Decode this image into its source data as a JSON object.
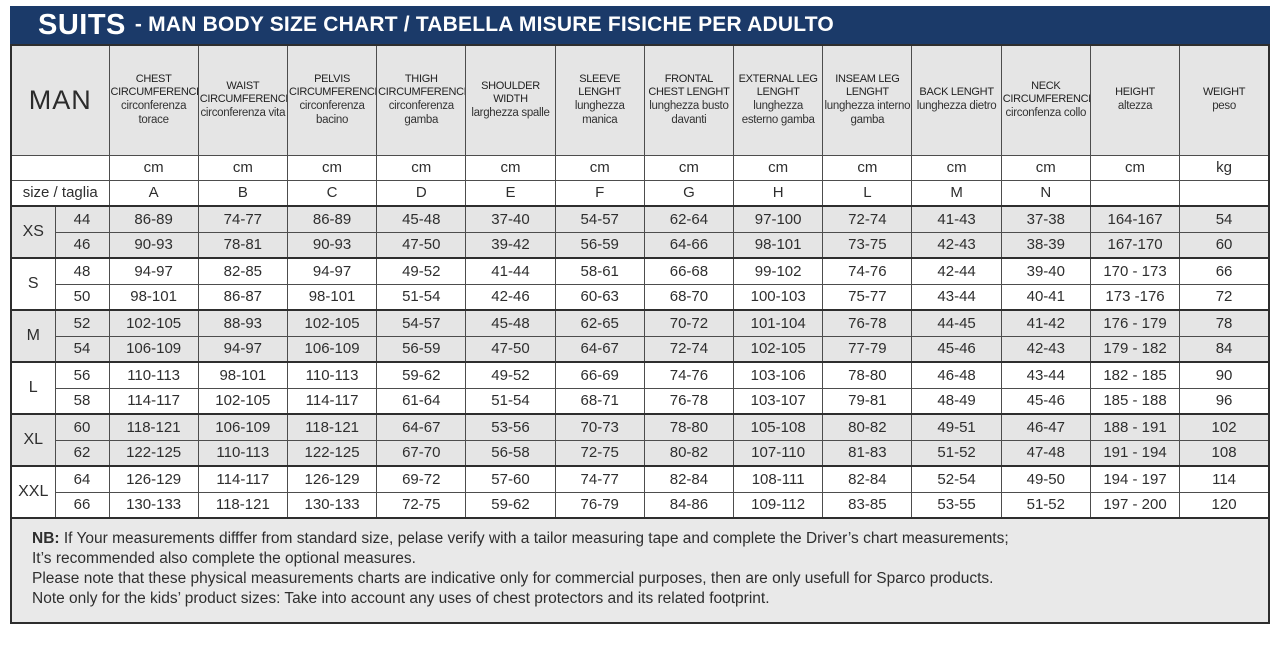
{
  "title": {
    "brand": "SUITS",
    "rest": "- MAN BODY SIZE CHART / TABELLA MISURE FISICHE PER ADULTO"
  },
  "table": {
    "man_label": "MAN",
    "size_row_label": "size / taglia",
    "columns": [
      {
        "en": "CHEST CIRCUMFERENCE",
        "it": "circonferenza torace",
        "unit": "cm",
        "letter": "A"
      },
      {
        "en": "WAIST CIRCUMFERENCE",
        "it": "circonferenza vita",
        "unit": "cm",
        "letter": "B"
      },
      {
        "en": "PELVIS CIRCUMFERENCE",
        "it": "circonferenza bacino",
        "unit": "cm",
        "letter": "C"
      },
      {
        "en": "THIGH CIRCUMFERENCE",
        "it": "circonferenza gamba",
        "unit": "cm",
        "letter": "D"
      },
      {
        "en": "SHOULDER WIDTH",
        "it": "larghezza spalle",
        "unit": "cm",
        "letter": "E"
      },
      {
        "en": "SLEEVE LENGHT",
        "it": "lunghezza manica",
        "unit": "cm",
        "letter": "F"
      },
      {
        "en": "FRONTAL CHEST LENGHT",
        "it": "lunghezza busto davanti",
        "unit": "cm",
        "letter": "G"
      },
      {
        "en": "EXTERNAL LEG LENGHT",
        "it": "lunghezza esterno gamba",
        "unit": "cm",
        "letter": "H"
      },
      {
        "en": "INSEAM LEG LENGHT",
        "it": "lunghezza interno gamba",
        "unit": "cm",
        "letter": "L"
      },
      {
        "en": "BACK LENGHT",
        "it": "lunghezza dietro",
        "unit": "cm",
        "letter": "M"
      },
      {
        "en": "NECK CIRCUMFERENCE",
        "it": "circonfenza collo",
        "unit": "cm",
        "letter": "N"
      },
      {
        "en": "HEIGHT",
        "it": "altezza",
        "unit": "cm",
        "letter": ""
      },
      {
        "en": "WEIGHT",
        "it": "peso",
        "unit": "kg",
        "letter": ""
      }
    ],
    "groups": [
      {
        "label": "XS",
        "rows": [
          {
            "size": "44",
            "values": [
              "86-89",
              "74-77",
              "86-89",
              "45-48",
              "37-40",
              "54-57",
              "62-64",
              "97-100",
              "72-74",
              "41-43",
              "37-38",
              "164-167",
              "54"
            ]
          },
          {
            "size": "46",
            "values": [
              "90-93",
              "78-81",
              "90-93",
              "47-50",
              "39-42",
              "56-59",
              "64-66",
              "98-101",
              "73-75",
              "42-43",
              "38-39",
              "167-170",
              "60"
            ]
          }
        ]
      },
      {
        "label": "S",
        "rows": [
          {
            "size": "48",
            "values": [
              "94-97",
              "82-85",
              "94-97",
              "49-52",
              "41-44",
              "58-61",
              "66-68",
              "99-102",
              "74-76",
              "42-44",
              "39-40",
              "170 - 173",
              "66"
            ]
          },
          {
            "size": "50",
            "values": [
              "98-101",
              "86-87",
              "98-101",
              "51-54",
              "42-46",
              "60-63",
              "68-70",
              "100-103",
              "75-77",
              "43-44",
              "40-41",
              "173 -176",
              "72"
            ]
          }
        ]
      },
      {
        "label": "M",
        "rows": [
          {
            "size": "52",
            "values": [
              "102-105",
              "88-93",
              "102-105",
              "54-57",
              "45-48",
              "62-65",
              "70-72",
              "101-104",
              "76-78",
              "44-45",
              "41-42",
              "176 - 179",
              "78"
            ]
          },
          {
            "size": "54",
            "values": [
              "106-109",
              "94-97",
              "106-109",
              "56-59",
              "47-50",
              "64-67",
              "72-74",
              "102-105",
              "77-79",
              "45-46",
              "42-43",
              "179 - 182",
              "84"
            ]
          }
        ]
      },
      {
        "label": "L",
        "rows": [
          {
            "size": "56",
            "values": [
              "110-113",
              "98-101",
              "110-113",
              "59-62",
              "49-52",
              "66-69",
              "74-76",
              "103-106",
              "78-80",
              "46-48",
              "43-44",
              "182 - 185",
              "90"
            ]
          },
          {
            "size": "58",
            "values": [
              "114-117",
              "102-105",
              "114-117",
              "61-64",
              "51-54",
              "68-71",
              "76-78",
              "103-107",
              "79-81",
              "48-49",
              "45-46",
              "185 - 188",
              "96"
            ]
          }
        ]
      },
      {
        "label": "XL",
        "rows": [
          {
            "size": "60",
            "values": [
              "118-121",
              "106-109",
              "118-121",
              "64-67",
              "53-56",
              "70-73",
              "78-80",
              "105-108",
              "80-82",
              "49-51",
              "46-47",
              "188 - 191",
              "102"
            ]
          },
          {
            "size": "62",
            "values": [
              "122-125",
              "110-113",
              "122-125",
              "67-70",
              "56-58",
              "72-75",
              "80-82",
              "107-110",
              "81-83",
              "51-52",
              "47-48",
              "191 - 194",
              "108"
            ]
          }
        ]
      },
      {
        "label": "XXL",
        "rows": [
          {
            "size": "64",
            "values": [
              "126-129",
              "114-117",
              "126-129",
              "69-72",
              "57-60",
              "74-77",
              "82-84",
              "108-111",
              "82-84",
              "52-54",
              "49-50",
              "194 - 197",
              "114"
            ]
          },
          {
            "size": "66",
            "values": [
              "130-133",
              "118-121",
              "130-133",
              "72-75",
              "59-62",
              "76-79",
              "84-86",
              "109-112",
              "83-85",
              "53-55",
              "51-52",
              "197 - 200",
              "120"
            ]
          }
        ]
      }
    ]
  },
  "notes": {
    "nb_label": "NB:",
    "line1": " If Your measurements difffer from standard size, pelase verify with a tailor measuring tape and complete the Driver’s chart measurements;",
    "line2": "It’s recommended also complete the optional measures.",
    "line3": "Please note that these physical measurements charts are indicative only for commercial purposes, then are only usefull for Sparco products.",
    "line4": "Note only for the kids’ product sizes: Take into account any uses of chest protectors and its related footprint."
  },
  "colors": {
    "header_navy": "#1b3a69",
    "band_gray": "#e5e5e5",
    "border_dark": "#2e2e2e"
  }
}
